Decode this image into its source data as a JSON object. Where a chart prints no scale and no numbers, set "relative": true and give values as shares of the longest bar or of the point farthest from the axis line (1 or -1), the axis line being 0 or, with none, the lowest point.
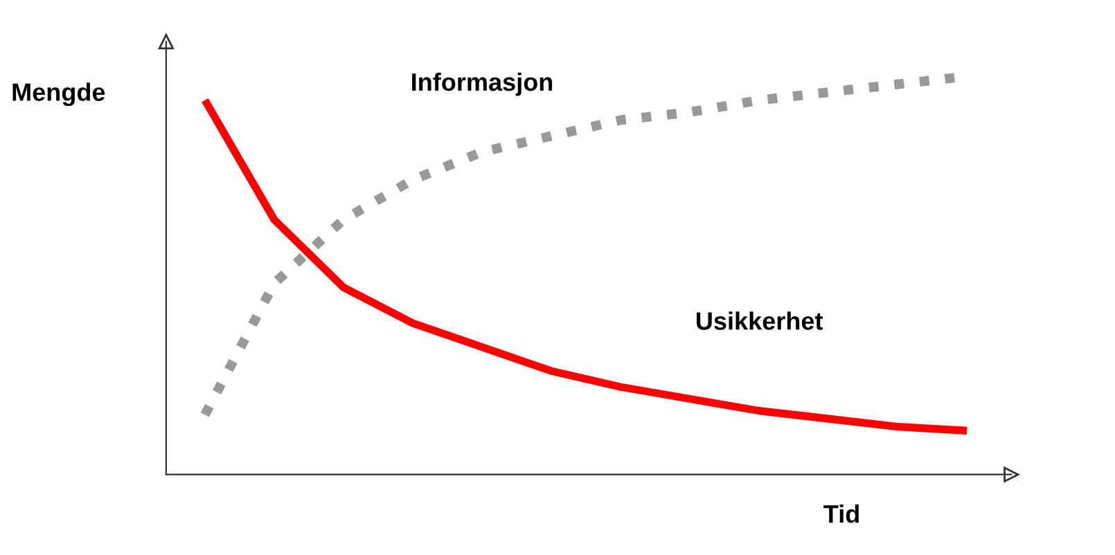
{
  "chart_data": {
    "type": "line",
    "relative": true,
    "ylabel": "Mengde",
    "xlabel": "Tid",
    "marker": "none",
    "categories": [
      null,
      null,
      null,
      null,
      null,
      null,
      null,
      null,
      null,
      null,
      null,
      null
    ],
    "series": [
      {
        "name": "Usikkerhet",
        "color": "#ff0000",
        "line_style": "solid",
        "values": [
          0.94,
          0.64,
          0.47,
          0.38,
          0.32,
          0.26,
          0.22,
          0.19,
          0.16,
          0.14,
          0.12,
          0.11
        ]
      },
      {
        "name": "Informasjon",
        "color": "#999999",
        "line_style": "dotted",
        "values": [
          0.15,
          0.48,
          0.64,
          0.74,
          0.81,
          0.85,
          0.89,
          0.91,
          0.94,
          0.96,
          0.98,
          1.0
        ]
      }
    ]
  }
}
